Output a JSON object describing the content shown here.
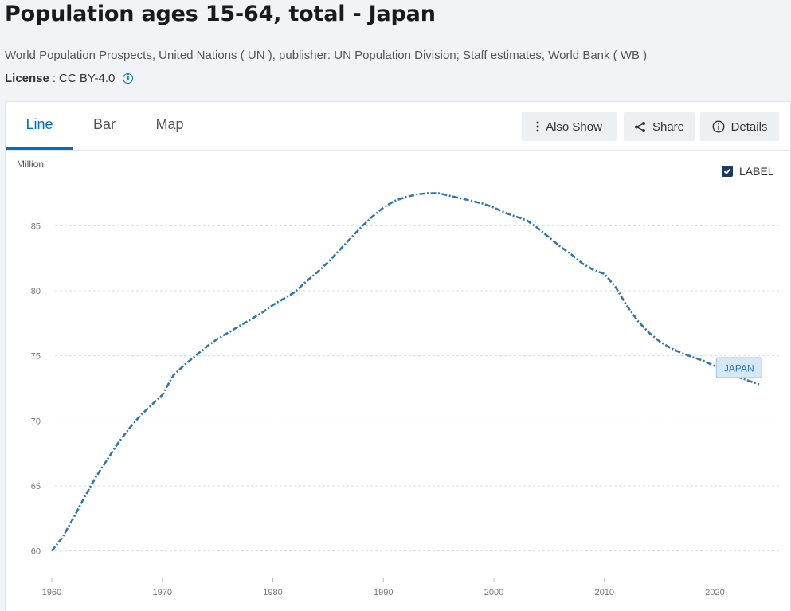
{
  "header": {
    "title": "Population ages 15-64, total - Japan",
    "source": "World Population Prospects, United Nations ( UN ), publisher: UN Population Division; Staff estimates, World Bank ( WB )",
    "license_label": "License",
    "license_value": "CC BY-4.0"
  },
  "tabs": [
    {
      "label": "Line",
      "active": true
    },
    {
      "label": "Bar",
      "active": false
    },
    {
      "label": "Map",
      "active": false
    }
  ],
  "toolbar": {
    "also_show_label": "Also Show",
    "share_label": "Share",
    "details_label": "Details"
  },
  "label_toggle": {
    "label": "LABEL",
    "checked": true
  },
  "colors": {
    "line": "#2e77ad",
    "accent": "#0071bc",
    "label_bg": "#d6e8f5",
    "label_border": "#9cc3df"
  },
  "chart_data": {
    "type": "line",
    "unit_label": "Million",
    "series": [
      {
        "name": "JAPAN",
        "x": [
          1960,
          1961,
          1962,
          1963,
          1964,
          1965,
          1966,
          1967,
          1968,
          1969,
          1970,
          1971,
          1972,
          1973,
          1974,
          1975,
          1976,
          1977,
          1978,
          1979,
          1980,
          1981,
          1982,
          1983,
          1984,
          1985,
          1986,
          1987,
          1988,
          1989,
          1990,
          1991,
          1992,
          1993,
          1994,
          1995,
          1996,
          1997,
          1998,
          1999,
          2000,
          2001,
          2002,
          2003,
          2004,
          2005,
          2006,
          2007,
          2008,
          2009,
          2010,
          2011,
          2012,
          2013,
          2014,
          2015,
          2016,
          2017,
          2018,
          2019,
          2020,
          2021,
          2022,
          2023,
          2024
        ],
        "values": [
          60.0,
          61.1,
          62.6,
          64.2,
          65.7,
          67.0,
          68.3,
          69.4,
          70.4,
          71.2,
          72.0,
          73.5,
          74.3,
          75.0,
          75.7,
          76.3,
          76.8,
          77.3,
          77.8,
          78.3,
          78.9,
          79.4,
          79.9,
          80.7,
          81.4,
          82.2,
          83.1,
          84.0,
          84.9,
          85.7,
          86.4,
          86.9,
          87.2,
          87.4,
          87.5,
          87.5,
          87.3,
          87.1,
          86.9,
          86.7,
          86.4,
          86.0,
          85.7,
          85.4,
          84.8,
          84.1,
          83.4,
          82.8,
          82.1,
          81.6,
          81.3,
          80.3,
          78.9,
          77.7,
          76.8,
          76.1,
          75.6,
          75.2,
          74.9,
          74.6,
          74.2,
          73.8,
          73.4,
          73.1,
          72.8
        ]
      }
    ],
    "xlim": [
      1960,
      2024
    ],
    "ylim": [
      59,
      89
    ],
    "x_ticks": [
      1960,
      1970,
      1980,
      1990,
      2000,
      2010,
      2020
    ],
    "y_ticks": [
      60,
      65,
      70,
      75,
      80,
      85
    ],
    "grid": true,
    "series_label": "JAPAN"
  }
}
